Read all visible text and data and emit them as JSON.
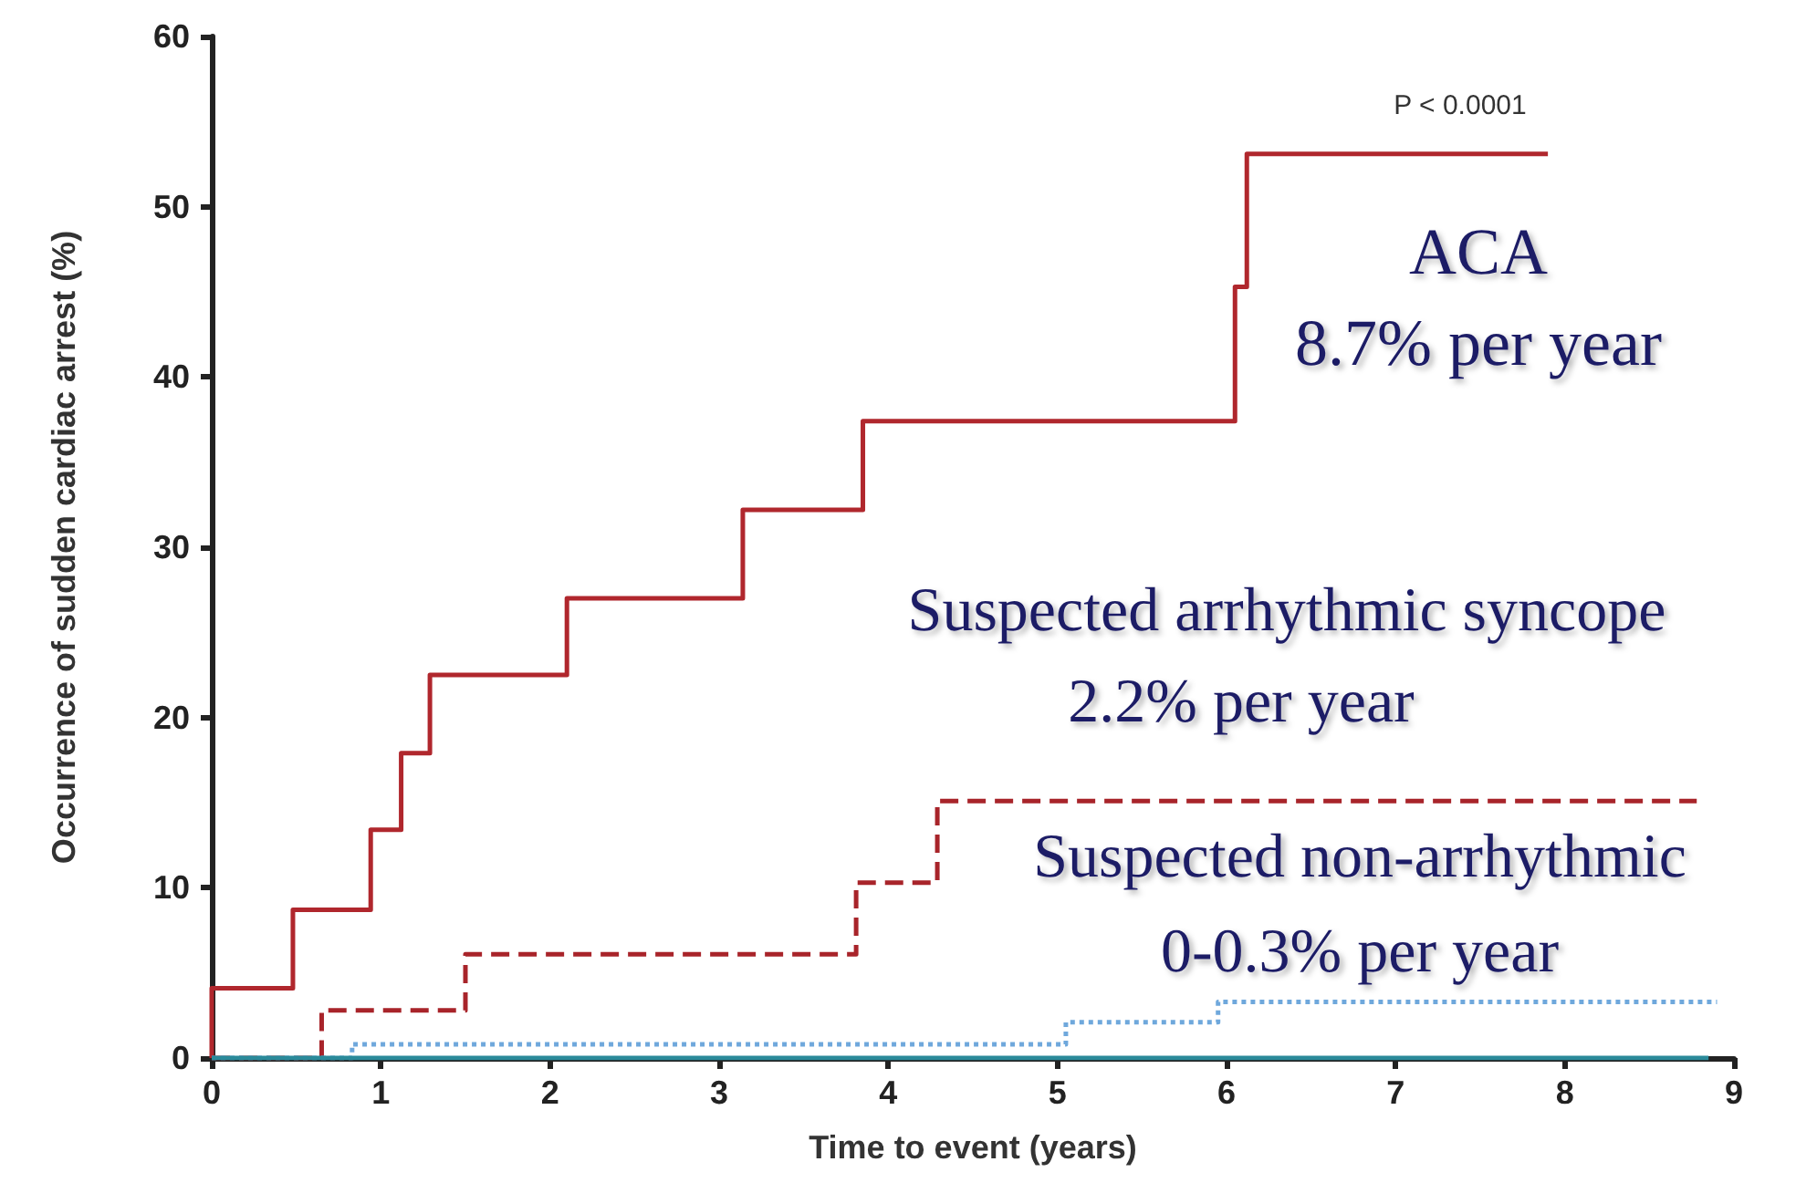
{
  "chart_data": {
    "type": "step",
    "xlabel": "Time to event (years)",
    "ylabel": "Occurrence of sudden cardiac arrest (%)",
    "xlim": [
      0,
      9
    ],
    "xticks": [
      0,
      1,
      2,
      3,
      4,
      5,
      6,
      7,
      8,
      9
    ],
    "ylim": [
      0,
      60
    ],
    "yticks": [
      0,
      10,
      20,
      30,
      40,
      50,
      60
    ],
    "grid": false,
    "marker": "none",
    "annotations": [
      "P < 0.0001",
      "ACA",
      "8.7% per year",
      "Suspected arrhythmic syncope",
      "2.2% per year",
      "Suspected non-arrhythmic",
      "0-0.3% per year"
    ],
    "series": [
      {
        "color": "#b0272d",
        "line_style": "solid",
        "x": [
          0,
          0,
          0.48,
          0.94,
          1.12,
          1.29,
          2.1,
          3.14,
          3.85,
          6.05,
          6.12,
          7.9
        ],
        "values": [
          0,
          4.1,
          8.7,
          13.4,
          17.9,
          22.5,
          27.0,
          32.2,
          37.4,
          45.3,
          53.1,
          53.1
        ]
      },
      {
        "color": "#a8242a",
        "line_style": "dashed",
        "x": [
          0,
          0.65,
          1.5,
          3.81,
          4.29,
          8.78
        ],
        "values": [
          0,
          2.8,
          6.1,
          10.3,
          15.1,
          15.1
        ]
      },
      {
        "color": "#6fa8dc",
        "line_style": "dotted",
        "x": [
          0,
          0.83,
          5.05,
          5.95,
          8.9
        ],
        "values": [
          0,
          0.8,
          2.1,
          3.3,
          3.3
        ]
      },
      {
        "color": "#2a8a9a",
        "line_style": "solid",
        "x": [
          0,
          8.85
        ],
        "values": [
          0,
          0
        ]
      }
    ]
  }
}
